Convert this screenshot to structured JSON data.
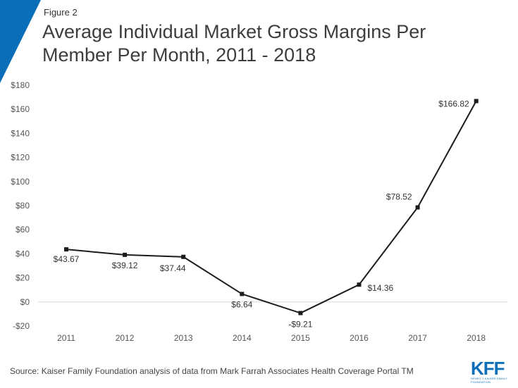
{
  "figure_label": "Figure 2",
  "title": "Average Individual Market Gross Margins Per Member Per Month, 2011 - 2018",
  "source": "Source: Kaiser Family Foundation analysis of data from Mark Farrah Associates Health Coverage Portal TM",
  "logo": {
    "main": "KFF",
    "sub": "HENRY J KAISER FAMILY FOUNDATION"
  },
  "colors": {
    "accent": "#0a6fb8",
    "line": "#1c1c1c",
    "grid": "#d9d9d9"
  },
  "chart_data": {
    "type": "line",
    "title": "Average Individual Market Gross Margins Per Member Per Month, 2011 - 2018",
    "xlabel": "",
    "ylabel": "",
    "categories": [
      "2011",
      "2012",
      "2013",
      "2014",
      "2015",
      "2016",
      "2017",
      "2018"
    ],
    "values": [
      43.67,
      39.12,
      37.44,
      6.64,
      -9.21,
      14.36,
      78.52,
      166.82
    ],
    "data_labels": [
      "$43.67",
      "$39.12",
      "$37.44",
      "$6.64",
      "-$9.21",
      "$14.36",
      "$78.52",
      "$166.82"
    ],
    "ylim": [
      -20,
      180
    ],
    "yticks": [
      -20,
      0,
      20,
      40,
      60,
      80,
      100,
      120,
      140,
      160,
      180
    ],
    "ytick_labels": [
      "-$20",
      "$0",
      "$20",
      "$40",
      "$60",
      "$80",
      "$100",
      "$120",
      "$140",
      "$160",
      "$180"
    ],
    "grid": false
  }
}
